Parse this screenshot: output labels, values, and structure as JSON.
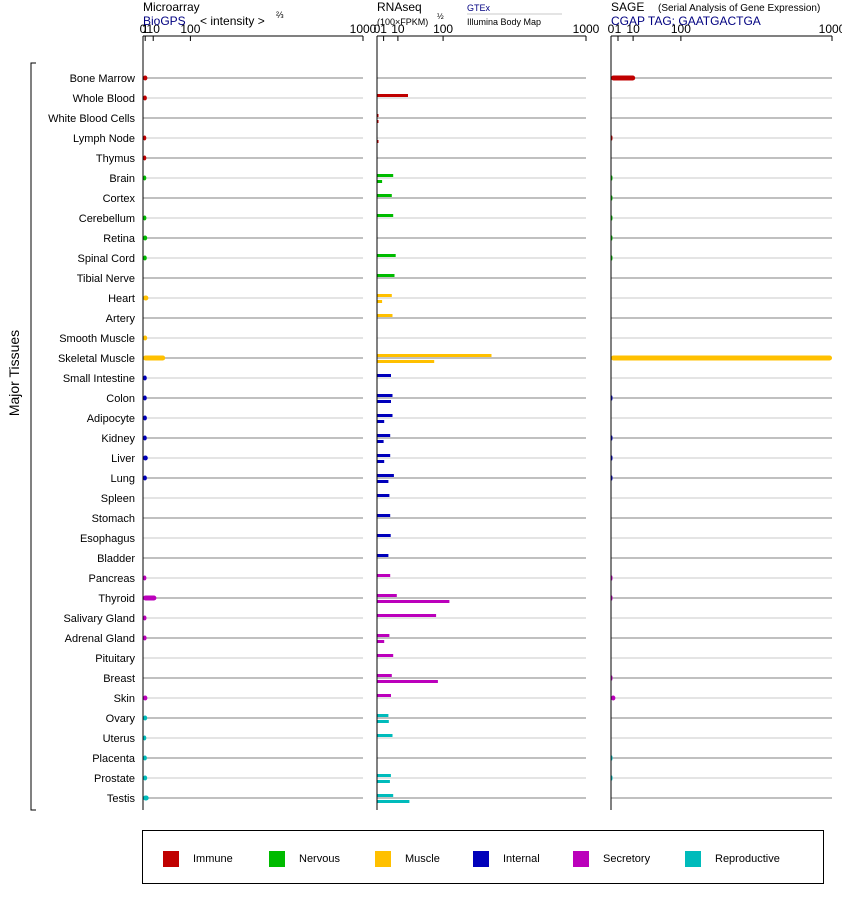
{
  "side_label": "Major Tissues",
  "headers": {
    "microarray": {
      "title": "Microarray",
      "source": "BioGPS",
      "unit_prefix": "< intensity >",
      "unit_exp": "⅔"
    },
    "rnaseq": {
      "title": "RNAseq",
      "unit_prefix": "(100×FPKM)",
      "unit_exp": "½",
      "source1": "GTEx",
      "source2": "Illumina Body Map"
    },
    "sage": {
      "title": "SAGE",
      "subtitle": "(Serial Analysis of Gene Expression)",
      "tag": "CGAP TAG: GAATGACTGA"
    }
  },
  "colors": {
    "Immune": "#c00000",
    "Nervous": "#00bb00",
    "Muscle": "#ffc000",
    "Internal": "#0000bb",
    "Secretory": "#bb00bb",
    "Reproductive": "#00bbbb",
    "source_link": "#000080",
    "gridline_dark": "#808080",
    "gridline_light": "#c8c8c8"
  },
  "legend": [
    {
      "name": "Immune",
      "color": "#c00000"
    },
    {
      "name": "Nervous",
      "color": "#00bb00"
    },
    {
      "name": "Muscle",
      "color": "#ffc000"
    },
    {
      "name": "Internal",
      "color": "#0000bb"
    },
    {
      "name": "Secretory",
      "color": "#bb00bb"
    },
    {
      "name": "Reproductive",
      "color": "#00bbbb"
    }
  ],
  "chart_data": {
    "type": "bar",
    "orientation": "horizontal",
    "panels": [
      "Microarray",
      "RNAseq",
      "SAGE"
    ],
    "axis_ticks": [
      "0",
      "1",
      "10",
      "100",
      "1000"
    ],
    "axis_tick_values": [
      0,
      1,
      10,
      100,
      1000
    ],
    "xlim": [
      0,
      1000
    ],
    "categories": [
      "Bone Marrow",
      "Whole Blood",
      "White Blood Cells",
      "Lymph Node",
      "Thymus",
      "Brain",
      "Cortex",
      "Cerebellum",
      "Retina",
      "Spinal Cord",
      "Tibial Nerve",
      "Heart",
      "Artery",
      "Smooth Muscle",
      "Skeletal Muscle",
      "Small Intestine",
      "Colon",
      "Adipocyte",
      "Kidney",
      "Liver",
      "Lung",
      "Spleen",
      "Stomach",
      "Esophagus",
      "Bladder",
      "Pancreas",
      "Thyroid",
      "Salivary Gland",
      "Adrenal Gland",
      "Pituitary",
      "Breast",
      "Skin",
      "Ovary",
      "Uterus",
      "Placenta",
      "Prostate",
      "Testis"
    ],
    "groups": [
      "Immune",
      "Immune",
      "Immune",
      "Immune",
      "Immune",
      "Nervous",
      "Nervous",
      "Nervous",
      "Nervous",
      "Nervous",
      "Nervous",
      "Muscle",
      "Muscle",
      "Muscle",
      "Muscle",
      "Internal",
      "Internal",
      "Internal",
      "Internal",
      "Internal",
      "Internal",
      "Internal",
      "Internal",
      "Internal",
      "Internal",
      "Secretory",
      "Secretory",
      "Secretory",
      "Secretory",
      "Secretory",
      "Secretory",
      "Secretory",
      "Reproductive",
      "Reproductive",
      "Reproductive",
      "Reproductive",
      "Reproductive"
    ],
    "microarray": [
      2.8,
      2.4,
      null,
      1.8,
      1.8,
      1.8,
      null,
      1.9,
      2.6,
      2.3,
      null,
      3.8,
      null,
      2.6,
      32,
      2.3,
      2.3,
      2.4,
      2.3,
      3.2,
      2.4,
      null,
      null,
      null,
      null,
      1.9,
      15,
      2.0,
      2.1,
      null,
      null,
      2.8,
      2.6,
      1.8,
      2.4,
      2.6,
      4.2
    ],
    "rnaseq_gtex": [
      null,
      22,
      0.02,
      null,
      null,
      6,
      5,
      6,
      null,
      8,
      7,
      5,
      5.5,
      null,
      300,
      4.5,
      5.5,
      5.5,
      4,
      4,
      6.5,
      3.5,
      4,
      4.3,
      3,
      4,
      9,
      80,
      3.5,
      6,
      5,
      4.5,
      3,
      5.5,
      null,
      4.4,
      6
    ],
    "rnaseq_ibm": [
      null,
      null,
      0.02,
      0.02,
      null,
      0.6,
      null,
      null,
      null,
      null,
      null,
      0.6,
      null,
      null,
      75,
      null,
      4.5,
      1.2,
      1.0,
      1.2,
      3,
      null,
      null,
      null,
      null,
      null,
      120,
      null,
      1.2,
      null,
      85,
      null,
      3.2,
      null,
      null,
      3.8,
      24
    ],
    "sage": [
      12,
      null,
      null,
      0.03,
      null,
      0.02,
      0.02,
      0.02,
      0.02,
      0.02,
      null,
      null,
      null,
      null,
      1000,
      null,
      0.03,
      null,
      0.03,
      0.03,
      0.03,
      null,
      null,
      null,
      null,
      0.03,
      0.03,
      null,
      null,
      null,
      0.03,
      0.4,
      null,
      null,
      0.02,
      0.02,
      null
    ]
  }
}
